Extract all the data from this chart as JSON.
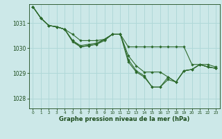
{
  "bg_color": "#cce8e8",
  "grid_color": "#b0d8d8",
  "line_color": "#2d6a2d",
  "marker_color": "#2d6a2d",
  "xlabel": "Graphe pression niveau de la mer (hPa)",
  "xlabel_color": "#1a4a1a",
  "tick_color": "#1a4a1a",
  "xlim": [
    -0.5,
    23.5
  ],
  "ylim": [
    1027.6,
    1031.75
  ],
  "yticks": [
    1028,
    1029,
    1030,
    1031
  ],
  "xticks": [
    0,
    1,
    2,
    3,
    4,
    5,
    6,
    7,
    8,
    9,
    10,
    11,
    12,
    13,
    14,
    15,
    16,
    17,
    18,
    19,
    20,
    21,
    22,
    23
  ],
  "series": [
    [
      1031.65,
      1031.2,
      1030.9,
      1030.85,
      1030.75,
      1030.55,
      1030.3,
      1030.3,
      1030.3,
      1030.35,
      1030.55,
      1030.55,
      1030.05,
      1030.05,
      1030.05,
      1030.05,
      1030.05,
      1030.05,
      1030.05,
      1030.05,
      1029.35,
      1029.35,
      1029.35,
      1029.25
    ],
    [
      1031.65,
      1031.2,
      1030.9,
      1030.85,
      1030.75,
      1030.3,
      1030.05,
      1030.1,
      1030.15,
      1030.3,
      1030.55,
      1030.55,
      1029.7,
      1029.3,
      1029.05,
      1029.05,
      1029.05,
      1028.85,
      1028.65,
      1029.1,
      1029.15,
      1029.35,
      1029.25,
      1029.2
    ],
    [
      1031.65,
      1031.2,
      1030.9,
      1030.85,
      1030.75,
      1030.3,
      1030.1,
      1030.15,
      1030.2,
      1030.35,
      1030.55,
      1030.55,
      1029.55,
      1029.1,
      1028.9,
      1028.45,
      1028.45,
      1028.75,
      1028.65,
      1029.1,
      1029.15,
      1029.35,
      1029.25,
      1029.2
    ],
    [
      1031.65,
      1031.2,
      1030.9,
      1030.85,
      1030.75,
      1030.25,
      1030.05,
      1030.1,
      1030.15,
      1030.35,
      1030.55,
      1030.55,
      1029.45,
      1029.05,
      1028.85,
      1028.45,
      1028.45,
      1028.85,
      1028.65,
      1029.1,
      1029.15,
      1029.35,
      1029.25,
      1029.2
    ]
  ]
}
